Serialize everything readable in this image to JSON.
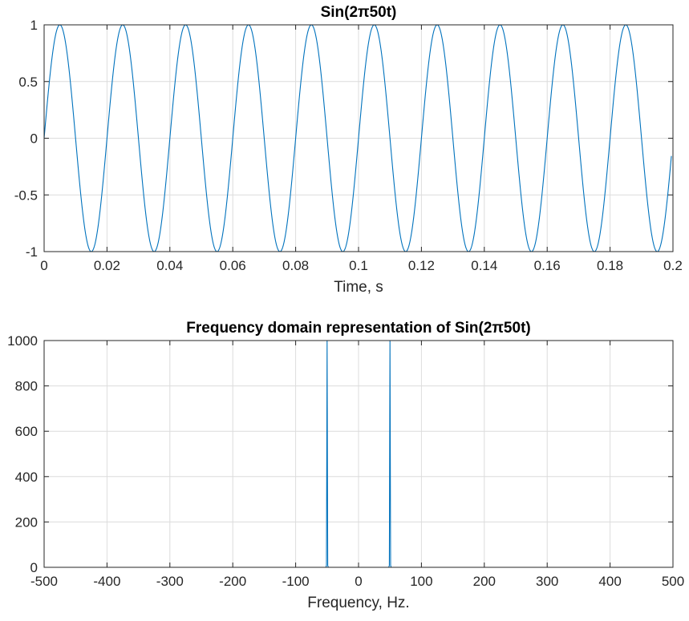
{
  "chart_data": [
    {
      "type": "line",
      "title": "Sin(2π50t)",
      "xlabel": "Time, s",
      "ylabel": "",
      "xlim": [
        0,
        0.2
      ],
      "ylim": [
        -1,
        1
      ],
      "xticks": [
        0,
        0.02,
        0.04,
        0.06,
        0.08,
        0.1,
        0.12,
        0.14,
        0.16,
        0.18,
        0.2
      ],
      "xtick_labels": [
        "0",
        "0.02",
        "0.04",
        "0.06",
        "0.08",
        "0.1",
        "0.12",
        "0.14",
        "0.16",
        "0.18",
        "0.2"
      ],
      "yticks": [
        -1,
        -0.5,
        0,
        0.5,
        1
      ],
      "ytick_labels": [
        "-1",
        "-0.5",
        "0",
        "0.5",
        "1"
      ],
      "grid": true,
      "series": [
        {
          "function": "sin(2*pi*50*t)",
          "frequency_hz": 50,
          "amplitude": 1,
          "t_range": [
            0,
            0.1995
          ],
          "color": "#0072BD"
        }
      ]
    },
    {
      "type": "line",
      "title": "Frequency  domain  representation  of  Sin(2π50t)",
      "xlabel": "Frequency, Hz.",
      "ylabel": "",
      "xlim": [
        -500,
        500
      ],
      "ylim": [
        0,
        1000
      ],
      "xticks": [
        -500,
        -400,
        -300,
        -200,
        -100,
        0,
        100,
        200,
        300,
        400,
        500
      ],
      "xtick_labels": [
        "-500",
        "-400",
        "-300",
        "-200",
        "-100",
        "0",
        "100",
        "200",
        "300",
        "400",
        "500"
      ],
      "yticks": [
        0,
        200,
        400,
        600,
        800,
        1000
      ],
      "ytick_labels": [
        "0",
        "200",
        "400",
        "600",
        "800",
        "1000"
      ],
      "grid": true,
      "series": [
        {
          "x": [
            -500,
            -52,
            -51,
            -50,
            -49,
            -48,
            48,
            49,
            50,
            51,
            52,
            500
          ],
          "values": [
            0,
            0,
            8,
            1000,
            8,
            0,
            0,
            8,
            1000,
            8,
            0,
            0
          ],
          "color": "#0072BD"
        }
      ]
    }
  ]
}
